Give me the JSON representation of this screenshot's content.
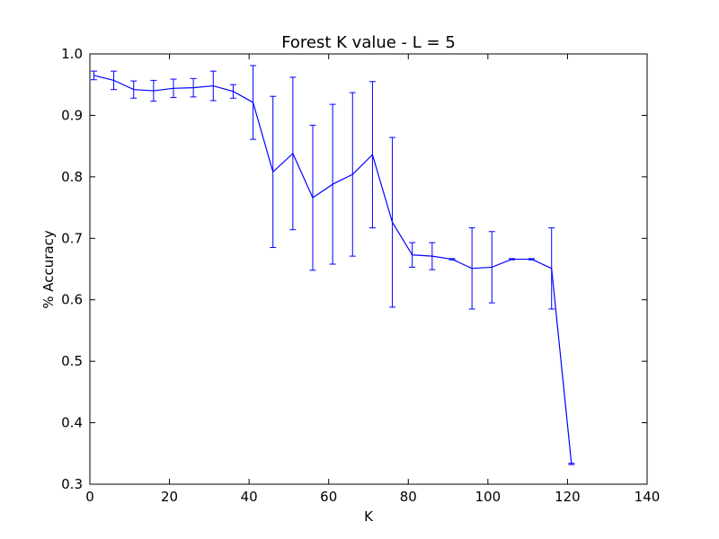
{
  "chart_data": {
    "type": "line",
    "title": "Forest K value - L = 5",
    "xlabel": "K",
    "ylabel": "% Accuracy",
    "xlim": [
      0,
      140
    ],
    "ylim": [
      0.3,
      1.0
    ],
    "xticks": [
      0,
      20,
      40,
      60,
      80,
      100,
      120,
      140
    ],
    "yticks": [
      0.3,
      0.4,
      0.5,
      0.6,
      0.7,
      0.8,
      0.9,
      1.0
    ],
    "xtick_labels": [
      "0",
      "20",
      "40",
      "60",
      "80",
      "100",
      "120",
      "140"
    ],
    "ytick_labels": [
      "0.3",
      "0.4",
      "0.5",
      "0.6",
      "0.7",
      "0.8",
      "0.9",
      "1.0"
    ],
    "grid": false,
    "series_color": "#0000ff",
    "series": [
      {
        "x": [
          1,
          6,
          11,
          16,
          21,
          26,
          31,
          36,
          41,
          46,
          51,
          56,
          61,
          66,
          71,
          76,
          81,
          86,
          91,
          96,
          101,
          106,
          111,
          116,
          121
        ],
        "y": [
          0.965,
          0.957,
          0.942,
          0.94,
          0.944,
          0.945,
          0.948,
          0.939,
          0.921,
          0.808,
          0.838,
          0.766,
          0.788,
          0.804,
          0.836,
          0.726,
          0.673,
          0.671,
          0.666,
          0.651,
          0.653,
          0.666,
          0.666,
          0.651,
          0.333
        ],
        "yerr": [
          0.007,
          0.015,
          0.014,
          0.017,
          0.015,
          0.015,
          0.024,
          0.011,
          0.06,
          0.123,
          0.124,
          0.118,
          0.13,
          0.133,
          0.119,
          0.138,
          0.02,
          0.022,
          0.001,
          0.066,
          0.058,
          0.001,
          0.001,
          0.066,
          0.001
        ]
      }
    ]
  }
}
